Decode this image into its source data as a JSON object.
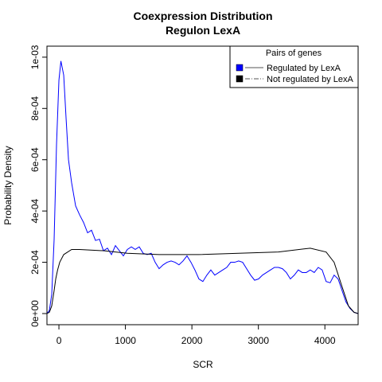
{
  "chart_data": {
    "type": "line",
    "title": "Coexpression Distribution",
    "subtitle": "Regulon LexA",
    "xlabel": "SCR",
    "ylabel": "Probability Density",
    "legend_title": "Pairs of genes",
    "legend": "top-right",
    "xlim": [
      -180,
      4500
    ],
    "ylim": [
      -4.35e-05,
      0.001043
    ],
    "xticks": [
      0,
      1000,
      2000,
      3000,
      4000
    ],
    "yticks": [
      {
        "value": 0,
        "label": "0e+00"
      },
      {
        "value": 0.0002,
        "label": "2e-04"
      },
      {
        "value": 0.0004,
        "label": "4e-04"
      },
      {
        "value": 0.0006,
        "label": "6e-04"
      },
      {
        "value": 0.0008,
        "label": "8e-04"
      },
      {
        "value": 0.001,
        "label": "1e-03"
      }
    ],
    "series": [
      {
        "name": "Regulated by  LexA",
        "color": "#0000ff",
        "x": [
          -180,
          -144,
          -108,
          -72,
          -36,
          0,
          30,
          72,
          108,
          144,
          191,
          251,
          311,
          371,
          431,
          490,
          550,
          610,
          670,
          730,
          790,
          850,
          909,
          969,
          1029,
          1089,
          1148,
          1208,
          1268,
          1328,
          1388,
          1447,
          1507,
          1567,
          1627,
          1687,
          1746,
          1806,
          1866,
          1926,
          1986,
          2045,
          2105,
          2165,
          2225,
          2285,
          2344,
          2404,
          2464,
          2524,
          2584,
          2644,
          2703,
          2763,
          2823,
          2883,
          2943,
          3002,
          3062,
          3122,
          3182,
          3242,
          3301,
          3361,
          3421,
          3481,
          3541,
          3600,
          3660,
          3720,
          3780,
          3840,
          3900,
          3959,
          4019,
          4079,
          4139,
          4199,
          4258,
          4318,
          4378,
          4438,
          4498
        ],
        "values": [
          0,
          1.2e-05,
          7.5e-05,
          0.00029,
          0.00066,
          0.00091,
          0.000985,
          0.00093,
          0.00076,
          0.0006,
          0.00051,
          0.00042,
          0.000385,
          0.000355,
          0.000315,
          0.000325,
          0.000285,
          0.00029,
          0.000245,
          0.000255,
          0.00023,
          0.000265,
          0.000245,
          0.000225,
          0.00025,
          0.00026,
          0.00025,
          0.00026,
          0.000235,
          0.00023,
          0.000235,
          0.0002,
          0.000175,
          0.00019,
          0.0002,
          0.000205,
          0.0002,
          0.00019,
          0.000205,
          0.000225,
          0.0002,
          0.00017,
          0.000135,
          0.000125,
          0.00015,
          0.00017,
          0.00015,
          0.00016,
          0.00017,
          0.00018,
          0.0002,
          0.0002,
          0.000205,
          0.0002,
          0.000175,
          0.00015,
          0.00013,
          0.000135,
          0.00015,
          0.00016,
          0.00017,
          0.00018,
          0.00018,
          0.000175,
          0.00016,
          0.000135,
          0.00015,
          0.00017,
          0.00016,
          0.00016,
          0.00017,
          0.00016,
          0.00018,
          0.00017,
          0.000125,
          0.00012,
          0.00015,
          0.000135,
          9e-05,
          4.5e-05,
          2e-05,
          5e-06,
          0
        ]
      },
      {
        "name": "Not regulated by  LexA",
        "color": "#000000",
        "x": [
          -180,
          -144,
          -108,
          -72,
          -48,
          -20,
          12,
          72,
          191,
          311,
          670,
          1029,
          1507,
          2105,
          2703,
          3301,
          3780,
          4019,
          4139,
          4258,
          4354,
          4438,
          4498
        ],
        "values": [
          0,
          5e-06,
          3e-05,
          9e-05,
          0.000135,
          0.00017,
          0.0002,
          0.00023,
          0.00025,
          0.00025,
          0.000245,
          0.000235,
          0.00023,
          0.00023,
          0.000235,
          0.00024,
          0.000255,
          0.00024,
          0.0002,
          0.000105,
          3e-05,
          5e-06,
          0
        ]
      }
    ]
  }
}
